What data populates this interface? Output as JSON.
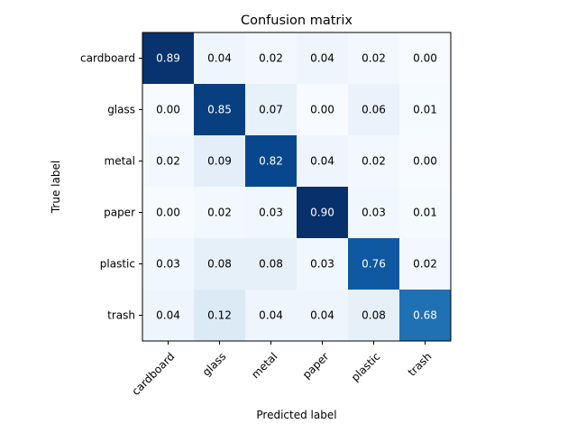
{
  "chart_data": {
    "type": "heatmap",
    "title": "Confusion matrix",
    "xlabel": "Predicted label",
    "ylabel": "True label",
    "x_categories": [
      "cardboard",
      "glass",
      "metal",
      "paper",
      "plastic",
      "trash"
    ],
    "y_categories": [
      "cardboard",
      "glass",
      "metal",
      "paper",
      "plastic",
      "trash"
    ],
    "values": [
      [
        0.89,
        0.04,
        0.02,
        0.04,
        0.02,
        0.0
      ],
      [
        0.0,
        0.85,
        0.07,
        0.0,
        0.06,
        0.01
      ],
      [
        0.02,
        0.09,
        0.82,
        0.04,
        0.02,
        0.0
      ],
      [
        0.0,
        0.02,
        0.03,
        0.9,
        0.03,
        0.01
      ],
      [
        0.03,
        0.08,
        0.08,
        0.03,
        0.76,
        0.02
      ],
      [
        0.04,
        0.12,
        0.04,
        0.04,
        0.08,
        0.68
      ]
    ],
    "value_format": "0.00",
    "colormap": "Blues",
    "color_range": [
      0.0,
      0.9
    ],
    "grid": false,
    "x_tick_rotation": 45
  }
}
